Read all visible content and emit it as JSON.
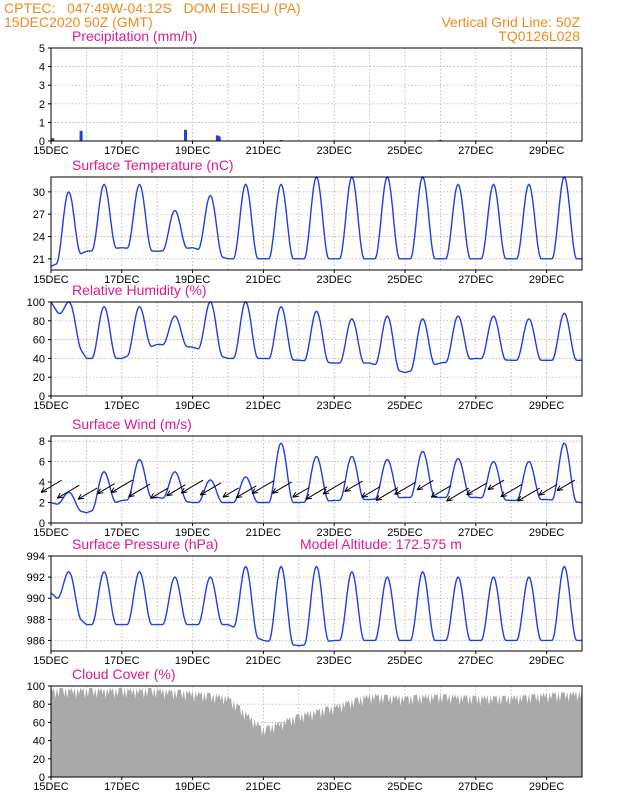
{
  "header": {
    "line1_left": "CPTEC:   047:49W-04:12S   DOM ELISEU (PA)",
    "line2_left": "15DEC2020 50Z (GMT)",
    "line1_right": "Vertical Grid Line: 50Z",
    "line2_right": "TQ0126L028"
  },
  "colors": {
    "header": "#f08a1c",
    "title": "#e0198c",
    "series": "#1f3fe0",
    "cloud": "#a9a9a9",
    "arrow": "#000000"
  },
  "chart_data": [
    {
      "type": "bar",
      "title": "Precipitation (mm/h)",
      "ylim": [
        0,
        5
      ],
      "yticks": [
        0,
        1,
        2,
        3,
        4,
        5
      ],
      "xlim": [
        15,
        30
      ],
      "xticks": [
        "15DEC",
        "17DEC",
        "19DEC",
        "21DEC",
        "23DEC",
        "25DEC",
        "27DEC",
        "29DEC"
      ],
      "points": [
        [
          15.05,
          0.15
        ],
        [
          15.85,
          0.55
        ],
        [
          18.8,
          0.6
        ],
        [
          19.7,
          0.3
        ],
        [
          19.75,
          0.25
        ],
        [
          21.5,
          0.05
        ],
        [
          23.5,
          0.03
        ],
        [
          26.0,
          0.05
        ]
      ]
    },
    {
      "type": "line",
      "title": "Surface Temperature (nC)",
      "ylim": [
        19.5,
        32
      ],
      "yticks": [
        21,
        24,
        27,
        30
      ],
      "xlim": [
        15,
        30
      ],
      "xticks": [
        "15DEC",
        "17DEC",
        "19DEC",
        "21DEC",
        "23DEC",
        "25DEC",
        "27DEC",
        "29DEC"
      ],
      "daily_min": [
        20,
        22,
        22.5,
        22,
        22.5,
        21,
        21,
        21,
        21,
        21,
        21,
        21,
        21,
        21,
        21,
        21
      ],
      "daily_max": [
        30,
        31,
        31,
        27.5,
        29.5,
        31,
        31,
        32,
        32,
        32,
        32,
        31,
        31,
        31,
        32
      ]
    },
    {
      "type": "line",
      "title": "Relative Humidity (%)",
      "ylim": [
        0,
        100
      ],
      "yticks": [
        0,
        20,
        40,
        60,
        80,
        100
      ],
      "xlim": [
        15,
        30
      ],
      "xticks": [
        "15DEC",
        "17DEC",
        "19DEC",
        "21DEC",
        "23DEC",
        "25DEC",
        "27DEC",
        "29DEC"
      ],
      "daily_min": [
        100,
        40,
        40,
        55,
        52,
        40,
        40,
        38,
        35,
        35,
        25,
        35,
        40,
        38,
        38,
        38
      ],
      "daily_max": [
        100,
        95,
        95,
        85,
        100,
        100,
        95,
        90,
        82,
        85,
        82,
        85,
        85,
        82,
        88
      ]
    },
    {
      "type": "line",
      "title": "Surface Wind (m/s)",
      "ylim": [
        0,
        8.5
      ],
      "yticks": [
        0,
        2,
        4,
        6,
        8
      ],
      "xlim": [
        15,
        30
      ],
      "xticks": [
        "15DEC",
        "17DEC",
        "19DEC",
        "21DEC",
        "23DEC",
        "25DEC",
        "27DEC",
        "29DEC"
      ],
      "daily_min": [
        2,
        1,
        2.2,
        2.5,
        2,
        2,
        2,
        2,
        2.2,
        2.3,
        2.5,
        2.5,
        2.5,
        2.2,
        2.3,
        2
      ],
      "daily_max": [
        3,
        5,
        6.2,
        5,
        4.2,
        4.5,
        7.8,
        6.5,
        6.5,
        6.2,
        7,
        6.3,
        6,
        6,
        7.8
      ]
    },
    {
      "type": "line",
      "title": "Surface Pressure (hPa)",
      "annotation": "Model Altitude: 172.575  m",
      "ylim": [
        985,
        994
      ],
      "yticks": [
        986,
        988,
        990,
        992,
        994
      ],
      "xlim": [
        15,
        30
      ],
      "xticks": [
        "15DEC",
        "17DEC",
        "19DEC",
        "21DEC",
        "23DEC",
        "25DEC",
        "27DEC",
        "29DEC"
      ],
      "daily_min": [
        990.5,
        987.5,
        987.5,
        987.5,
        987.5,
        987.5,
        986,
        985.5,
        986,
        986,
        986,
        986,
        986,
        986,
        986,
        986
      ],
      "daily_max": [
        992.5,
        992.5,
        992.5,
        992,
        992,
        993,
        993,
        993,
        992.5,
        992,
        992.5,
        992,
        992,
        992,
        993
      ]
    },
    {
      "type": "area",
      "title": "Cloud Cover (%)",
      "ylim": [
        0,
        100
      ],
      "yticks": [
        0,
        20,
        40,
        60,
        80,
        100
      ],
      "xlim": [
        15,
        30
      ],
      "xticks": [
        "15DEC",
        "17DEC",
        "19DEC",
        "21DEC",
        "23DEC",
        "25DEC",
        "27DEC",
        "29DEC"
      ],
      "daily_mean": [
        98,
        98,
        98,
        98,
        95,
        90,
        55,
        70,
        80,
        92,
        90,
        92,
        90,
        90,
        93,
        95
      ]
    }
  ]
}
